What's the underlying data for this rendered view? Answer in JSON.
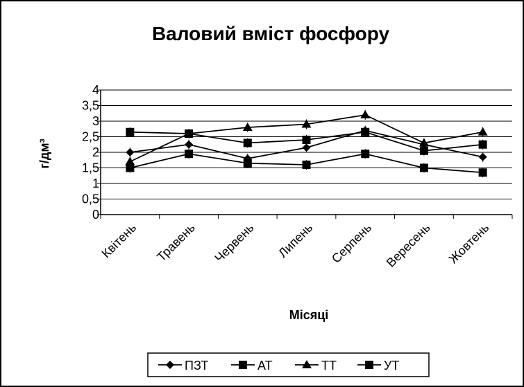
{
  "chart_data": {
    "type": "line",
    "title": "Валовий вміст фосфору",
    "xlabel": "Місяці",
    "ylabel": "г/дм³",
    "ylim": [
      0,
      4
    ],
    "y_ticks": [
      "0",
      "0,5",
      "1",
      "1,5",
      "2",
      "2,5",
      "3",
      "3,5",
      "4"
    ],
    "grid": true,
    "legend_position": "bottom",
    "categories": [
      "Квітень",
      "Травень",
      "Червень",
      "Липень",
      "Серпень",
      "Вересень",
      "Жовтень"
    ],
    "series": [
      {
        "name": "ПЗТ",
        "marker": "diamond",
        "values": [
          2.0,
          2.25,
          1.8,
          2.15,
          2.7,
          2.25,
          1.85
        ]
      },
      {
        "name": "АТ",
        "marker": "square",
        "values": [
          1.5,
          1.95,
          1.65,
          1.6,
          1.95,
          1.5,
          1.35
        ]
      },
      {
        "name": "ТТ",
        "marker": "triangle",
        "values": [
          1.7,
          2.6,
          2.8,
          2.9,
          3.2,
          2.3,
          2.65
        ]
      },
      {
        "name": "УТ",
        "marker": "square",
        "values": [
          2.65,
          2.6,
          2.3,
          2.4,
          2.65,
          2.05,
          2.25
        ]
      }
    ],
    "colors": {
      "line": "#000000",
      "grid": "#000000",
      "background": "#ffffff"
    }
  }
}
